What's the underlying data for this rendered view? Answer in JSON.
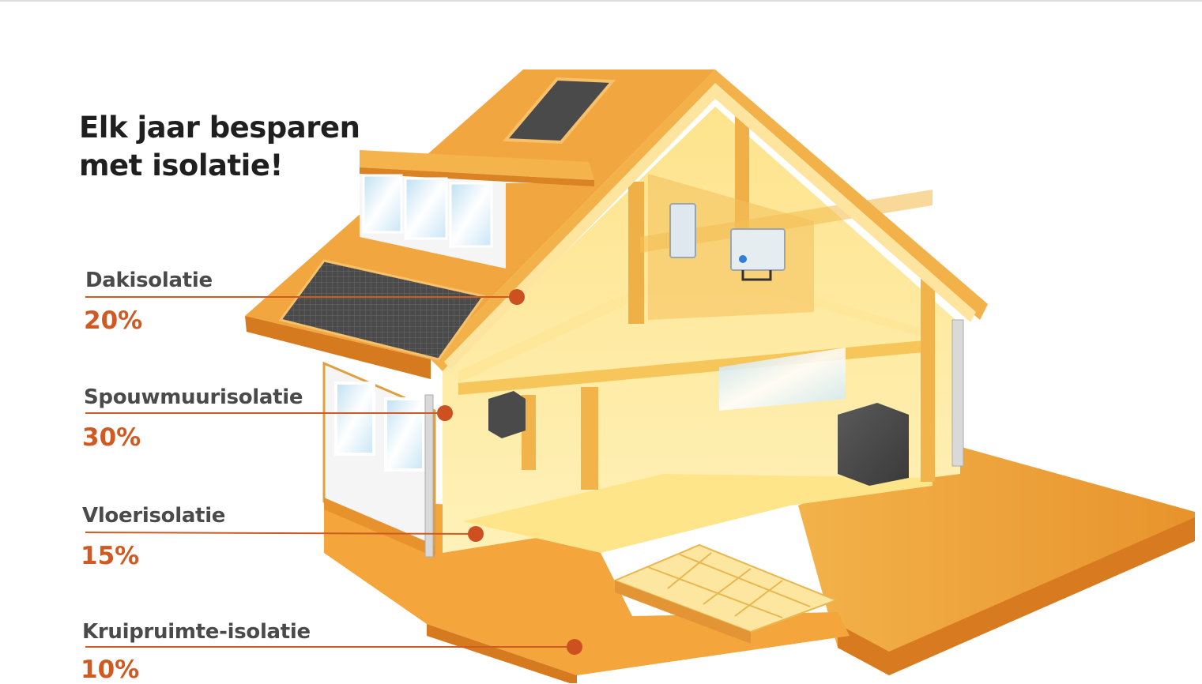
{
  "title": {
    "line1": "Elk jaar besparen",
    "line2": "met isolatie!"
  },
  "savings": [
    {
      "label": "Dakisolatie",
      "percent": "20%"
    },
    {
      "label": "Spouwmuurisolatie",
      "percent": "30%"
    },
    {
      "label": "Vloerisolatie",
      "percent": "15%"
    },
    {
      "label": "Kruipruimte-isolatie",
      "percent": "10%"
    }
  ],
  "colors": {
    "roof_orange": "#f0a13a",
    "interior_yellow": "#fde48a",
    "pointer": "#d05a22",
    "title_text": "#1f1f1f",
    "label_text": "#4a4a4a"
  }
}
